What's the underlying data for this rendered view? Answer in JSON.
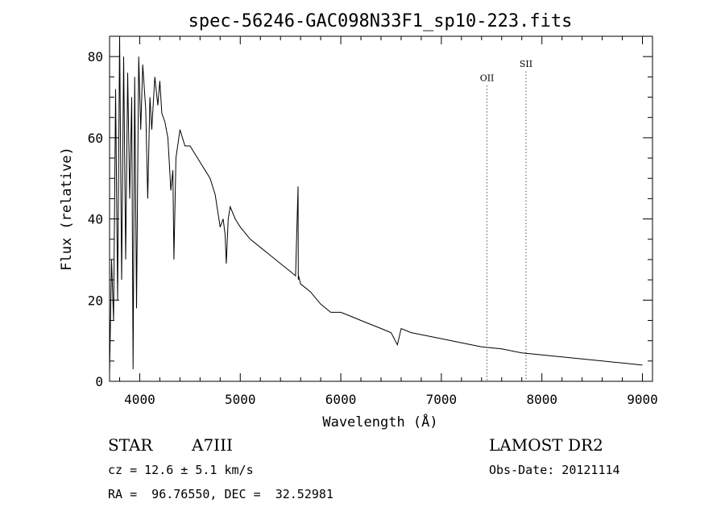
{
  "chart_data": {
    "type": "line",
    "title": "spec-56246-GAC098N33F1_sp10-223.fits",
    "xlabel": "Wavelength (Å)",
    "ylabel": "Flux (relative)",
    "xlim": [
      3700,
      9100
    ],
    "ylim": [
      0,
      85
    ],
    "xticks": [
      4000,
      5000,
      6000,
      7000,
      8000,
      9000
    ],
    "yticks": [
      0,
      20,
      40,
      60,
      80
    ],
    "grid": false,
    "series": [
      {
        "x": [
          3700,
          3720,
          3740,
          3760,
          3780,
          3800,
          3820,
          3840,
          3860,
          3880,
          3900,
          3920,
          3934,
          3950,
          3968,
          3990,
          4010,
          4030,
          4060,
          4080,
          4101,
          4120,
          4150,
          4180,
          4200,
          4220,
          4250,
          4280,
          4310,
          4330,
          4340,
          4360,
          4400,
          4450,
          4500,
          4550,
          4600,
          4650,
          4700,
          4750,
          4800,
          4830,
          4850,
          4861,
          4880,
          4900,
          4950,
          5000,
          5100,
          5200,
          5300,
          5400,
          5500,
          5550,
          5575,
          5577,
          5580,
          5600,
          5700,
          5800,
          5900,
          6000,
          6100,
          6200,
          6300,
          6400,
          6500,
          6563,
          6600,
          6700,
          6800,
          6900,
          7000,
          7200,
          7400,
          7600,
          7800,
          8000,
          8200,
          8400,
          8600,
          8800,
          9000
        ],
        "values": [
          2,
          30,
          15,
          72,
          20,
          85,
          25,
          80,
          30,
          76,
          45,
          70,
          3,
          75,
          18,
          80,
          62,
          78,
          67,
          45,
          70,
          62,
          75,
          68,
          74,
          66,
          64,
          60,
          47,
          52,
          30,
          55,
          62,
          58,
          58,
          56,
          54,
          52,
          50,
          46,
          38,
          40,
          36,
          29,
          40,
          43,
          40,
          38,
          35,
          33,
          31,
          29,
          27,
          26,
          48,
          25,
          26,
          24,
          22,
          19,
          17,
          17,
          16,
          15,
          14,
          13,
          12,
          9,
          13,
          12,
          11.5,
          11,
          10.5,
          9.5,
          8.5,
          8,
          7,
          6.5,
          6,
          5.5,
          5,
          4.5,
          4
        ]
      }
    ],
    "annotations": [
      {
        "label": "OII",
        "x": 7454,
        "y": 74
      },
      {
        "label": "SII",
        "x": 7842,
        "y": 77.5
      }
    ]
  },
  "info": {
    "object_class": "STAR",
    "subclass": "A7III",
    "survey": "LAMOST DR2",
    "cz": "cz = 12.6 ± 5.1 km/s",
    "obs_date": "Obs-Date: 20121114",
    "coords": "RA =  96.76550, DEC =  32.52981"
  }
}
